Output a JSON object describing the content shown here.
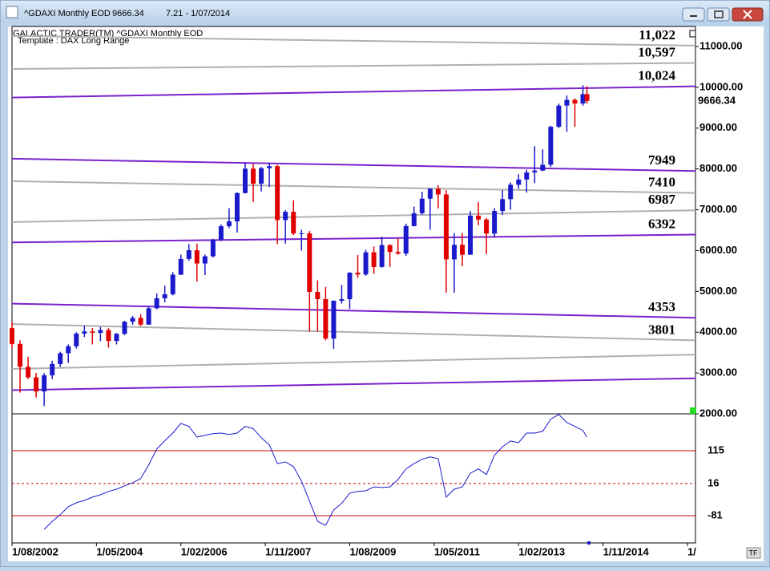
{
  "window": {
    "title": "^GDAXI Monthly EOD",
    "last": 9666.34,
    "info": "7.21 - 1/07/2014"
  },
  "chart_data": [
    {
      "type": "candlestick",
      "header": "GALACTIC TRADER(TM)   ^GDAXI Monthly EOD",
      "subtitle": "Template : DAX Long Range",
      "x": [
        "1/08/2002",
        "1/10/2002",
        "1/12/2002",
        "1/02/2003",
        "1/04/2003",
        "1/06/2003",
        "1/08/2003",
        "1/10/2003",
        "1/12/2003",
        "1/02/2004",
        "1/04/2004",
        "1/06/2004",
        "1/08/2004",
        "1/10/2004",
        "1/12/2004",
        "1/02/2005",
        "1/04/2005",
        "1/06/2005",
        "1/08/2005",
        "1/10/2005",
        "1/12/2005",
        "1/02/2006",
        "1/04/2006",
        "1/06/2006",
        "1/08/2006",
        "1/10/2006",
        "1/12/2006",
        "1/02/2007",
        "1/04/2007",
        "1/06/2007",
        "1/08/2007",
        "1/10/2007",
        "1/12/2007",
        "1/02/2008",
        "1/04/2008",
        "1/06/2008",
        "1/08/2008",
        "1/10/2008",
        "1/12/2008",
        "1/02/2009",
        "1/04/2009",
        "1/06/2009",
        "1/08/2009",
        "1/10/2009",
        "1/12/2009",
        "1/02/2010",
        "1/04/2010",
        "1/06/2010",
        "1/08/2010",
        "1/10/2010",
        "1/12/2010",
        "1/02/2011",
        "1/04/2011",
        "1/06/2011",
        "1/08/2011",
        "1/10/2011",
        "1/12/2011",
        "1/02/2012",
        "1/04/2012",
        "1/06/2012",
        "1/08/2012",
        "1/10/2012",
        "1/12/2012",
        "1/02/2013",
        "1/04/2013",
        "1/06/2013",
        "1/08/2013",
        "1/10/2013",
        "1/12/2013",
        "1/02/2014",
        "1/04/2014",
        "1/06/2014",
        "1/07/2014"
      ],
      "series": [
        {
          "up_color": "#1a1acc",
          "down_color": "#e00000",
          "ohlc": [
            [
              4100,
              4250,
              3600,
              3712
            ],
            [
              3712,
              3800,
              2520,
              3153
            ],
            [
              3153,
              3400,
              2850,
              2893
            ],
            [
              2893,
              3000,
              2400,
              2547
            ],
            [
              2547,
              3000,
              2190,
              2942
            ],
            [
              2942,
              3300,
              2850,
              3221
            ],
            [
              3221,
              3520,
              3150,
              3485
            ],
            [
              3485,
              3700,
              3250,
              3655
            ],
            [
              3655,
              4000,
              3600,
              3965
            ],
            [
              3965,
              4160,
              3880,
              4018
            ],
            [
              4018,
              4100,
              3700,
              3985
            ],
            [
              3985,
              4130,
              3780,
              4052
            ],
            [
              4052,
              4100,
              3620,
              3785
            ],
            [
              3785,
              3980,
              3700,
              3960
            ],
            [
              3960,
              4280,
              3930,
              4256
            ],
            [
              4256,
              4400,
              4180,
              4350
            ],
            [
              4350,
              4440,
              4150,
              4185
            ],
            [
              4185,
              4630,
              4180,
              4586
            ],
            [
              4586,
              4950,
              4560,
              4830
            ],
            [
              4830,
              5140,
              4730,
              4930
            ],
            [
              4930,
              5470,
              4900,
              5408
            ],
            [
              5408,
              5900,
              5400,
              5796
            ],
            [
              5796,
              6160,
              5750,
              6009
            ],
            [
              6009,
              6170,
              5240,
              5683
            ],
            [
              5683,
              5900,
              5400,
              5860
            ],
            [
              5860,
              6290,
              5830,
              6268
            ],
            [
              6268,
              6640,
              6230,
              6597
            ],
            [
              6597,
              7040,
              6550,
              6715
            ],
            [
              6715,
              7430,
              6440,
              7409
            ],
            [
              7409,
              8150,
              7400,
              8007
            ],
            [
              8007,
              8120,
              7190,
              7638
            ],
            [
              7638,
              8050,
              7450,
              8019
            ],
            [
              8019,
              8150,
              7560,
              8067
            ],
            [
              8067,
              8100,
              6160,
              6748
            ],
            [
              6748,
              6990,
              6170,
              6949
            ],
            [
              6949,
              7230,
              6380,
              6418
            ],
            [
              6418,
              6510,
              6000,
              6422
            ],
            [
              6422,
              6480,
              4010,
              4988
            ],
            [
              4988,
              5270,
              4010,
              4810
            ],
            [
              4810,
              5110,
              3800,
              3844
            ],
            [
              3844,
              4780,
              3590,
              4770
            ],
            [
              4770,
              5160,
              4700,
              4809
            ],
            [
              4809,
              5470,
              4570,
              5458
            ],
            [
              5458,
              5890,
              5330,
              5415
            ],
            [
              5415,
              6020,
              5380,
              5957
            ],
            [
              5957,
              6100,
              5430,
              5598
            ],
            [
              5598,
              6340,
              5580,
              6135
            ],
            [
              6135,
              6150,
              5600,
              5966
            ],
            [
              5966,
              6300,
              5900,
              5925
            ],
            [
              5925,
              6660,
              5870,
              6601
            ],
            [
              6601,
              7080,
              6590,
              6914
            ],
            [
              6914,
              7440,
              6880,
              7272
            ],
            [
              7272,
              7530,
              6510,
              7514
            ],
            [
              7514,
              7600,
              7030,
              7376
            ],
            [
              7376,
              7480,
              4970,
              5784
            ],
            [
              5784,
              6430,
              4970,
              6141
            ],
            [
              6141,
              6430,
              5620,
              5898
            ],
            [
              5898,
              6970,
              5900,
              6856
            ],
            [
              6856,
              7190,
              6620,
              6761
            ],
            [
              6761,
              6800,
              5910,
              6416
            ],
            [
              6416,
              7040,
              6330,
              6970
            ],
            [
              6970,
              7480,
              6870,
              7260
            ],
            [
              7260,
              7670,
              7000,
              7612
            ],
            [
              7612,
              7870,
              7510,
              7741
            ],
            [
              7741,
              7980,
              7420,
              7914
            ],
            [
              7914,
              8560,
              7650,
              7959
            ],
            [
              7959,
              8480,
              7950,
              8103
            ],
            [
              8103,
              9060,
              8050,
              9033
            ],
            [
              9033,
              9600,
              9000,
              9552
            ],
            [
              9552,
              9800,
              8910,
              9692
            ],
            [
              9692,
              9730,
              9030,
              9603
            ],
            [
              9603,
              10050,
              9550,
              9833
            ],
            [
              9833,
              10030,
              9600,
              9666
            ]
          ]
        }
      ],
      "ylim": [
        2000,
        11491
      ],
      "yticks": [
        {
          "value": 2000,
          "label": "2000.00"
        },
        {
          "value": 3000,
          "label": "3000.00"
        },
        {
          "value": 4000,
          "label": "4000.00"
        },
        {
          "value": 5000,
          "label": "5000.00"
        },
        {
          "value": 6000,
          "label": "6000.00"
        },
        {
          "value": 7000,
          "label": "7000.00"
        },
        {
          "value": 8000,
          "label": "8000.00"
        },
        {
          "value": 9000,
          "label": "9000.00"
        },
        {
          "value": 10000,
          "label": "10000.00"
        },
        {
          "value": 11000,
          "label": "11000.00"
        }
      ],
      "xlim": [
        "1/08/2002",
        "1/10/2016"
      ],
      "xticks": [
        "1/08/2002",
        "1/05/2004",
        "1/02/2006",
        "1/11/2007",
        "1/08/2009",
        "1/05/2011",
        "1/02/2013",
        "1/11/2014",
        {
          "value": "1/08/2016",
          "label": "1/"
        }
      ],
      "last_value": 9666.34,
      "levels": [
        {
          "start": 11260,
          "end": 11022,
          "color": "#b0b0b0",
          "label": "11,022"
        },
        {
          "start": 10450,
          "end": 10597,
          "color": "#b0b0b0",
          "label": "10,597"
        },
        {
          "start": 9750,
          "end": 10024,
          "color": "#7a22cc",
          "label": "10,024"
        },
        {
          "start": 8250,
          "end": 7949,
          "color": "#7a22cc",
          "label": "7949"
        },
        {
          "start": 7700,
          "end": 7410,
          "color": "#b0b0b0",
          "label": "7410"
        },
        {
          "start": 6700,
          "end": 6987,
          "color": "#b0b0b0",
          "label": "6987"
        },
        {
          "start": 6200,
          "end": 6392,
          "color": "#7a22cc",
          "label": "6392"
        },
        {
          "start": 4700,
          "end": 4353,
          "color": "#7a22cc",
          "label": "4353"
        },
        {
          "start": 4200,
          "end": 3801,
          "color": "#b0b0b0",
          "label": "3801"
        },
        {
          "start": 3100,
          "end": 3450,
          "color": "#b0b0b0"
        },
        {
          "start": 2580,
          "end": 2870,
          "color": "#7a22cc"
        }
      ]
    },
    {
      "type": "line",
      "color": "#1a1acc",
      "values": [
        null,
        null,
        null,
        null,
        -122,
        -98,
        -78,
        -54,
        -42,
        -35,
        -25,
        -18,
        -8,
        -1,
        9,
        18,
        31,
        72,
        120,
        145,
        168,
        197,
        188,
        156,
        161,
        166,
        168,
        164,
        168,
        188,
        181,
        154,
        132,
        76,
        81,
        67,
        23,
        -37,
        -98,
        -110,
        -64,
        -44,
        -13,
        -8,
        -6,
        6,
        4,
        6,
        28,
        60,
        76,
        89,
        96,
        91,
        -25,
        -1,
        6,
        47,
        60,
        43,
        101,
        127,
        144,
        139,
        168,
        168,
        173,
        210,
        224,
        200,
        188,
        176,
        156
      ],
      "ylim": [
        -163,
        226
      ],
      "yticks": [
        115,
        16,
        -81
      ],
      "tick_line_styles": [
        "solid",
        "dashed",
        "solid"
      ],
      "tick_line_color": "#cc0000"
    }
  ]
}
